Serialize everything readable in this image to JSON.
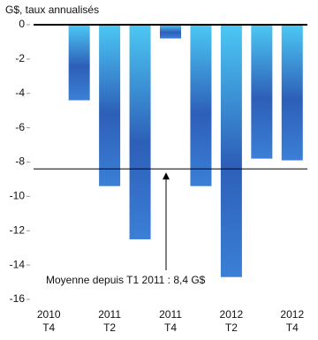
{
  "chart_data": {
    "type": "bar",
    "y_label": "G$, taux annualisés",
    "categories": [
      [
        "2010",
        "T4"
      ],
      null,
      [
        "2011",
        "T2"
      ],
      null,
      [
        "2011",
        "T4"
      ],
      null,
      [
        "2012",
        "T2"
      ],
      null,
      [
        "2012",
        "T4"
      ]
    ],
    "values": [
      null,
      -4.4,
      -9.4,
      -12.5,
      -0.8,
      -9.4,
      -14.7,
      -7.8,
      -7.9
    ],
    "color": "#2d5fb8",
    "ylim": [
      -16,
      0
    ],
    "yticks": [
      0,
      -2,
      -4,
      -6,
      -8,
      -10,
      -12,
      -14,
      -16
    ],
    "average": -8.4,
    "annotation": "Moyenne depuis T1 2011 : 8,4 G$"
  }
}
